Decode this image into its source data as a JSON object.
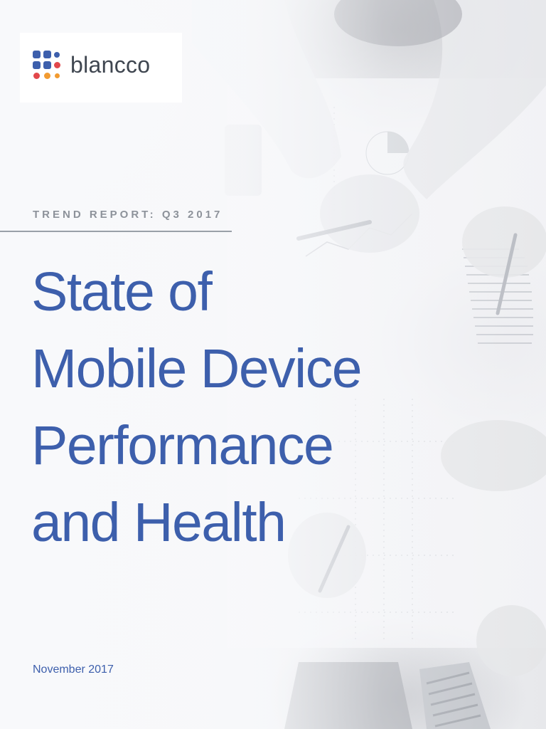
{
  "brand": {
    "name": "blancco",
    "dot_colors": [
      "#3d5fac",
      "#3d5fac",
      "#3d5fac",
      "#3d5fac",
      "#3d5fac",
      "#e2474b",
      "#e2474b",
      "#f29b31",
      "#f29b31"
    ]
  },
  "eyebrow": "TREND REPORT: Q3 2017",
  "title_lines": [
    "State of",
    "Mobile Device",
    "Performance",
    "and Health"
  ],
  "date": "November 2017",
  "colors": {
    "title": "#3d5fac",
    "eyebrow": "#8d929a",
    "brand_text": "#3f4650"
  }
}
